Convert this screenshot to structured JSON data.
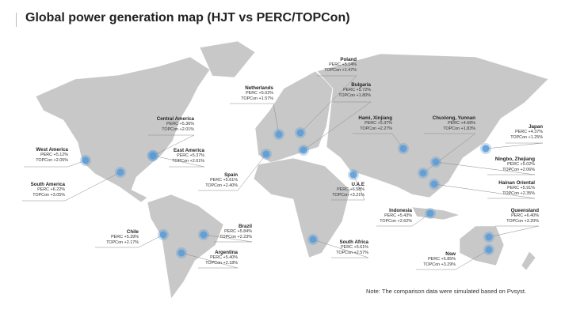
{
  "title": "Global power generation map  (HJT vs PERC/TOPCon)",
  "note": "Note: The comparison data were simulated based on Pvsyst.",
  "colors": {
    "land": "#c8c8c8",
    "marker": "#5b9bd5",
    "leader": "#8a8a8a"
  },
  "sites": [
    {
      "name": "West America",
      "perc": "PERC +5.12%",
      "topcon": "TOPCon +2.05%"
    },
    {
      "name": "South America",
      "perc": "PERC +6.22%",
      "topcon": "TOPCon +3.05%"
    },
    {
      "name": "Central America",
      "perc": "PERC +5.36%",
      "topcon": "TOPCon +2.01%"
    },
    {
      "name": "East America",
      "perc": "PERC +5.37%",
      "topcon": "TOPCon +2.01%"
    },
    {
      "name": "Netherlands",
      "perc": "PERC +5.02%",
      "topcon": "TOPCon +1.57%"
    },
    {
      "name": "Poland",
      "perc": "PERC +5.14%",
      "topcon": "TOPCon +1.47%"
    },
    {
      "name": "Bulgaria",
      "perc": "PERC +5.72%",
      "topcon": "TOPCon +1.80%"
    },
    {
      "name": "Hami, Xinjiang",
      "perc": "PERC +5.37%",
      "topcon": "TOPCon +2.27%"
    },
    {
      "name": "Chuxiong, Yunnan",
      "perc": "PERC +4.68%",
      "topcon": "TOPCon +1.83%"
    },
    {
      "name": "Japan",
      "perc": "PERC +4.37%",
      "topcon": "TOPCon +1.25%"
    },
    {
      "name": "Ningbo, Zhejiang",
      "perc": "PERC +5.02%",
      "topcon": "TOPCon +2.06%"
    },
    {
      "name": "Hainan Oriental",
      "perc": "PERC +5.91%",
      "topcon": "TOPCon +2.35%"
    },
    {
      "name": "Spain",
      "perc": "PERC +5.61%",
      "topcon": "TOPCon +2.40%"
    },
    {
      "name": "U.A.E",
      "perc": "PERC +6.58%",
      "topcon": "TOPCon +3.21%"
    },
    {
      "name": "Indonesia",
      "perc": "PERC +5.43%",
      "topcon": "TOPCon +2.62%"
    },
    {
      "name": "Queensland",
      "perc": "PERC +6.40%",
      "topcon": "TOPCon +3.20%"
    },
    {
      "name": "Nsw",
      "perc": "PERC +5.85%",
      "topcon": "TOPCon +3.29%"
    },
    {
      "name": "Chile",
      "perc": "PERC +5.39%",
      "topcon": "TOPCon +2.17%"
    },
    {
      "name": "Brazil",
      "perc": "PERC +5.84%",
      "topcon": "TOPCon +2.23%"
    },
    {
      "name": "Argentina",
      "perc": "PERC +5.40%",
      "topcon": "TOPCon +2.18%"
    },
    {
      "name": "South Africa",
      "perc": "PERC +5.61%",
      "topcon": "TOPCon +2.57%"
    }
  ]
}
